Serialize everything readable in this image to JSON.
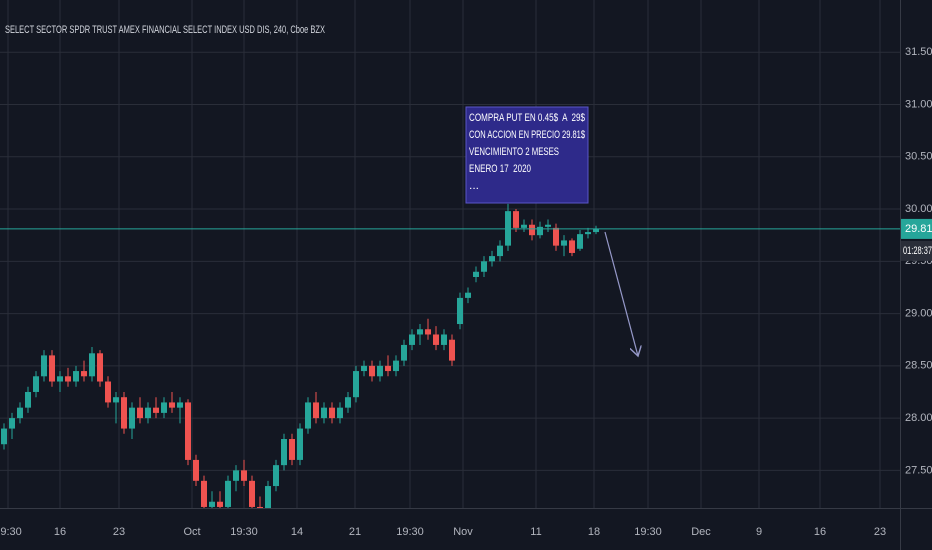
{
  "chart_data": {
    "type": "candlestick",
    "title": "SELECT SECTOR SPDR TRUST AMEX FINANCIAL SELECT INDEX USD DIS, 240, Cboe BZX",
    "x_labels": [
      "19:30",
      "16",
      "23",
      "Oct",
      "19:30",
      "14",
      "21",
      "19:30",
      "Nov",
      "11",
      "18",
      "19:30",
      "Dec",
      "9",
      "16",
      "23"
    ],
    "candles": [
      [
        27.75,
        27.95,
        27.7,
        27.9
      ],
      [
        27.9,
        28.05,
        27.8,
        28.0
      ],
      [
        28.0,
        28.15,
        27.95,
        28.1
      ],
      [
        28.1,
        28.3,
        28.05,
        28.25
      ],
      [
        28.25,
        28.45,
        28.2,
        28.4
      ],
      [
        28.4,
        28.65,
        28.35,
        28.6
      ],
      [
        28.6,
        28.65,
        28.3,
        28.35
      ],
      [
        28.35,
        28.45,
        28.25,
        28.4
      ],
      [
        28.4,
        28.48,
        28.3,
        28.35
      ],
      [
        28.35,
        28.5,
        28.3,
        28.45
      ],
      [
        28.45,
        28.55,
        28.35,
        28.4
      ],
      [
        28.4,
        28.68,
        28.35,
        28.62
      ],
      [
        28.62,
        28.65,
        28.3,
        28.35
      ],
      [
        28.35,
        28.4,
        28.1,
        28.15
      ],
      [
        28.15,
        28.25,
        27.95,
        28.2
      ],
      [
        28.2,
        28.25,
        27.85,
        27.9
      ],
      [
        27.9,
        28.15,
        27.8,
        28.1
      ],
      [
        28.1,
        28.2,
        27.95,
        28.0
      ],
      [
        28.0,
        28.15,
        27.95,
        28.1
      ],
      [
        28.1,
        28.2,
        28.0,
        28.05
      ],
      [
        28.05,
        28.2,
        28.0,
        28.15
      ],
      [
        28.15,
        28.25,
        28.05,
        28.1
      ],
      [
        28.1,
        28.2,
        27.95,
        28.15
      ],
      [
        28.15,
        28.18,
        27.55,
        27.6
      ],
      [
        27.6,
        27.65,
        27.35,
        27.4
      ],
      [
        27.4,
        27.45,
        27.1,
        27.15
      ],
      [
        27.15,
        27.3,
        27.0,
        27.2
      ],
      [
        27.2,
        27.3,
        27.05,
        27.15
      ],
      [
        27.15,
        27.45,
        27.1,
        27.4
      ],
      [
        27.4,
        27.55,
        27.3,
        27.5
      ],
      [
        27.5,
        27.6,
        27.35,
        27.4
      ],
      [
        27.4,
        27.45,
        27.1,
        27.15
      ],
      [
        27.15,
        27.25,
        27.0,
        27.1
      ],
      [
        27.1,
        27.4,
        27.05,
        27.35
      ],
      [
        27.35,
        27.6,
        27.3,
        27.55
      ],
      [
        27.55,
        27.85,
        27.5,
        27.8
      ],
      [
        27.8,
        27.85,
        27.55,
        27.6
      ],
      [
        27.6,
        27.95,
        27.55,
        27.9
      ],
      [
        27.9,
        28.2,
        27.85,
        28.15
      ],
      [
        28.15,
        28.25,
        27.95,
        28.0
      ],
      [
        28.0,
        28.15,
        27.95,
        28.1
      ],
      [
        28.1,
        28.15,
        27.95,
        28.0
      ],
      [
        28.0,
        28.15,
        27.95,
        28.1
      ],
      [
        28.1,
        28.25,
        28.05,
        28.2
      ],
      [
        28.2,
        28.5,
        28.15,
        28.45
      ],
      [
        28.45,
        28.55,
        28.4,
        28.5
      ],
      [
        28.5,
        28.55,
        28.35,
        28.4
      ],
      [
        28.4,
        28.55,
        28.35,
        28.5
      ],
      [
        28.5,
        28.6,
        28.4,
        28.45
      ],
      [
        28.45,
        28.6,
        28.4,
        28.55
      ],
      [
        28.55,
        28.75,
        28.5,
        28.7
      ],
      [
        28.7,
        28.85,
        28.65,
        28.8
      ],
      [
        28.8,
        28.9,
        28.7,
        28.85
      ],
      [
        28.85,
        28.95,
        28.75,
        28.8
      ],
      [
        28.8,
        28.88,
        28.65,
        28.7
      ],
      [
        28.7,
        28.85,
        28.65,
        28.8
      ],
      [
        28.75,
        28.8,
        28.5,
        28.55
      ],
      [
        28.9,
        29.2,
        28.85,
        29.15
      ],
      [
        29.15,
        29.25,
        29.1,
        29.2
      ],
      [
        29.35,
        29.45,
        29.3,
        29.4
      ],
      [
        29.4,
        29.55,
        29.35,
        29.5
      ],
      [
        29.5,
        29.6,
        29.45,
        29.55
      ],
      [
        29.55,
        29.7,
        29.5,
        29.65
      ],
      [
        29.65,
        30.05,
        29.6,
        29.98
      ],
      [
        29.98,
        30.0,
        29.78,
        29.82
      ],
      [
        29.82,
        29.9,
        29.78,
        29.85
      ],
      [
        29.85,
        29.9,
        29.7,
        29.75
      ],
      [
        29.75,
        29.88,
        29.72,
        29.83
      ],
      [
        29.83,
        29.9,
        29.78,
        29.85
      ],
      [
        29.82,
        29.86,
        29.6,
        29.65
      ],
      [
        29.65,
        29.75,
        29.55,
        29.7
      ],
      [
        29.7,
        29.72,
        29.55,
        29.58
      ],
      [
        29.62,
        29.8,
        29.6,
        29.76
      ],
      [
        29.76,
        29.82,
        29.72,
        29.78
      ],
      [
        29.78,
        29.84,
        29.76,
        29.81
      ]
    ],
    "up_color": "#26a69a",
    "down_color": "#ef5350",
    "ylim": [
      27.14,
      32.0
    ],
    "yticks": [
      {
        "value": 27.5,
        "label": "27.50"
      },
      {
        "value": 28,
        "label": "28.00"
      },
      {
        "value": 28.5,
        "label": "28.50"
      },
      {
        "value": 29,
        "label": "29.00"
      },
      {
        "value": 29.5,
        "label": "29.50"
      },
      {
        "value": 30,
        "label": "30.00"
      },
      {
        "value": 30.5,
        "label": "30.50"
      },
      {
        "value": 31,
        "label": "31.00"
      },
      {
        "value": 31.5,
        "label": "31.50"
      }
    ],
    "grid": true,
    "last_price": 29.81,
    "countdown": "01:28:37",
    "annotation": [
      "COMPRA PUT EN 0.45$  A  29$",
      "CON ACCION EN PRECIO 29.81$",
      "VENCIMIENTO 2 MESES",
      "ENERO 17  2020",
      "..."
    ]
  }
}
